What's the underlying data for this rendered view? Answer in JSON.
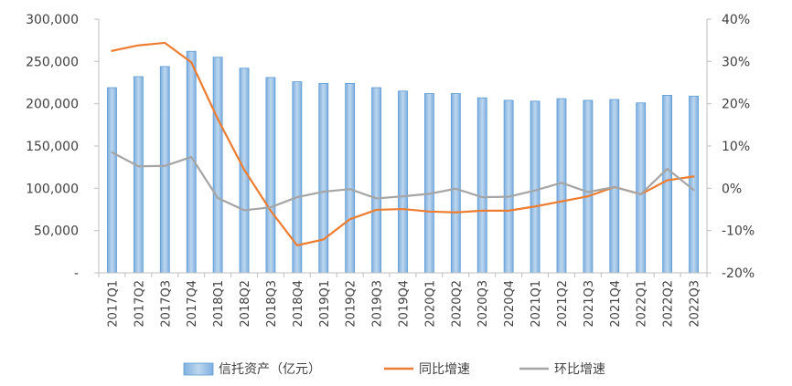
{
  "chart_data": {
    "type": "bar",
    "categories": [
      "2017Q1",
      "2017Q2",
      "2017Q3",
      "2017Q4",
      "2018Q1",
      "2018Q2",
      "2018Q3",
      "2018Q4",
      "2019Q1",
      "2019Q2",
      "2019Q3",
      "2019Q4",
      "2020Q1",
      "2020Q2",
      "2020Q3",
      "2020Q4",
      "2021Q1",
      "2021Q2",
      "2021Q3",
      "2021Q4",
      "2022Q1",
      "2022Q2",
      "2022Q3"
    ],
    "series": [
      {
        "name": "信托资产（亿元）",
        "type": "bar",
        "axis": "left",
        "color": "#9DC3E6",
        "values": [
          219000,
          232000,
          244000,
          262000,
          255000,
          242000,
          231000,
          226000,
          224000,
          224000,
          219000,
          215000,
          212000,
          212000,
          207000,
          204000,
          203000,
          206000,
          204000,
          205000,
          201000,
          210000,
          209000
        ]
      },
      {
        "name": "同比增速",
        "type": "line",
        "axis": "right",
        "color": "#ED7D31",
        "values": [
          32.5,
          33.8,
          34.4,
          29.8,
          16.4,
          4.4,
          -5.3,
          -13.5,
          -12.1,
          -7.3,
          -5.1,
          -4.9,
          -5.5,
          -5.7,
          -5.3,
          -5.3,
          -4.3,
          -3.1,
          -1.9,
          0.3,
          -1.4,
          1.9,
          2.8
        ]
      },
      {
        "name": "环比增速",
        "type": "line",
        "axis": "right",
        "color": "#A5A5A5",
        "values": [
          8.5,
          5.2,
          5.3,
          7.4,
          -2.3,
          -5.2,
          -4.5,
          -2.1,
          -0.8,
          -0.2,
          -2.4,
          -1.9,
          -1.3,
          -0.1,
          -2.1,
          -2.0,
          -0.5,
          1.3,
          -0.9,
          0.3,
          -1.4,
          4.6,
          -0.4
        ]
      }
    ],
    "y_left": {
      "ylim": [
        0,
        300000
      ],
      "ticks": [
        0,
        50000,
        100000,
        150000,
        200000,
        250000,
        300000
      ],
      "tick_labels": [
        "-",
        "50,000",
        "100,000",
        "150,000",
        "200,000",
        "250,000",
        "300,000"
      ]
    },
    "y_right": {
      "ylim": [
        -20,
        40
      ],
      "ticks": [
        -20,
        -10,
        0,
        10,
        20,
        30,
        40
      ],
      "tick_labels": [
        "-20%",
        "-10%",
        "0%",
        "10%",
        "20%",
        "30%",
        "40%"
      ]
    },
    "title": "",
    "xlabel": "",
    "ylabel": "",
    "grid": false,
    "legend_position": "bottom"
  }
}
